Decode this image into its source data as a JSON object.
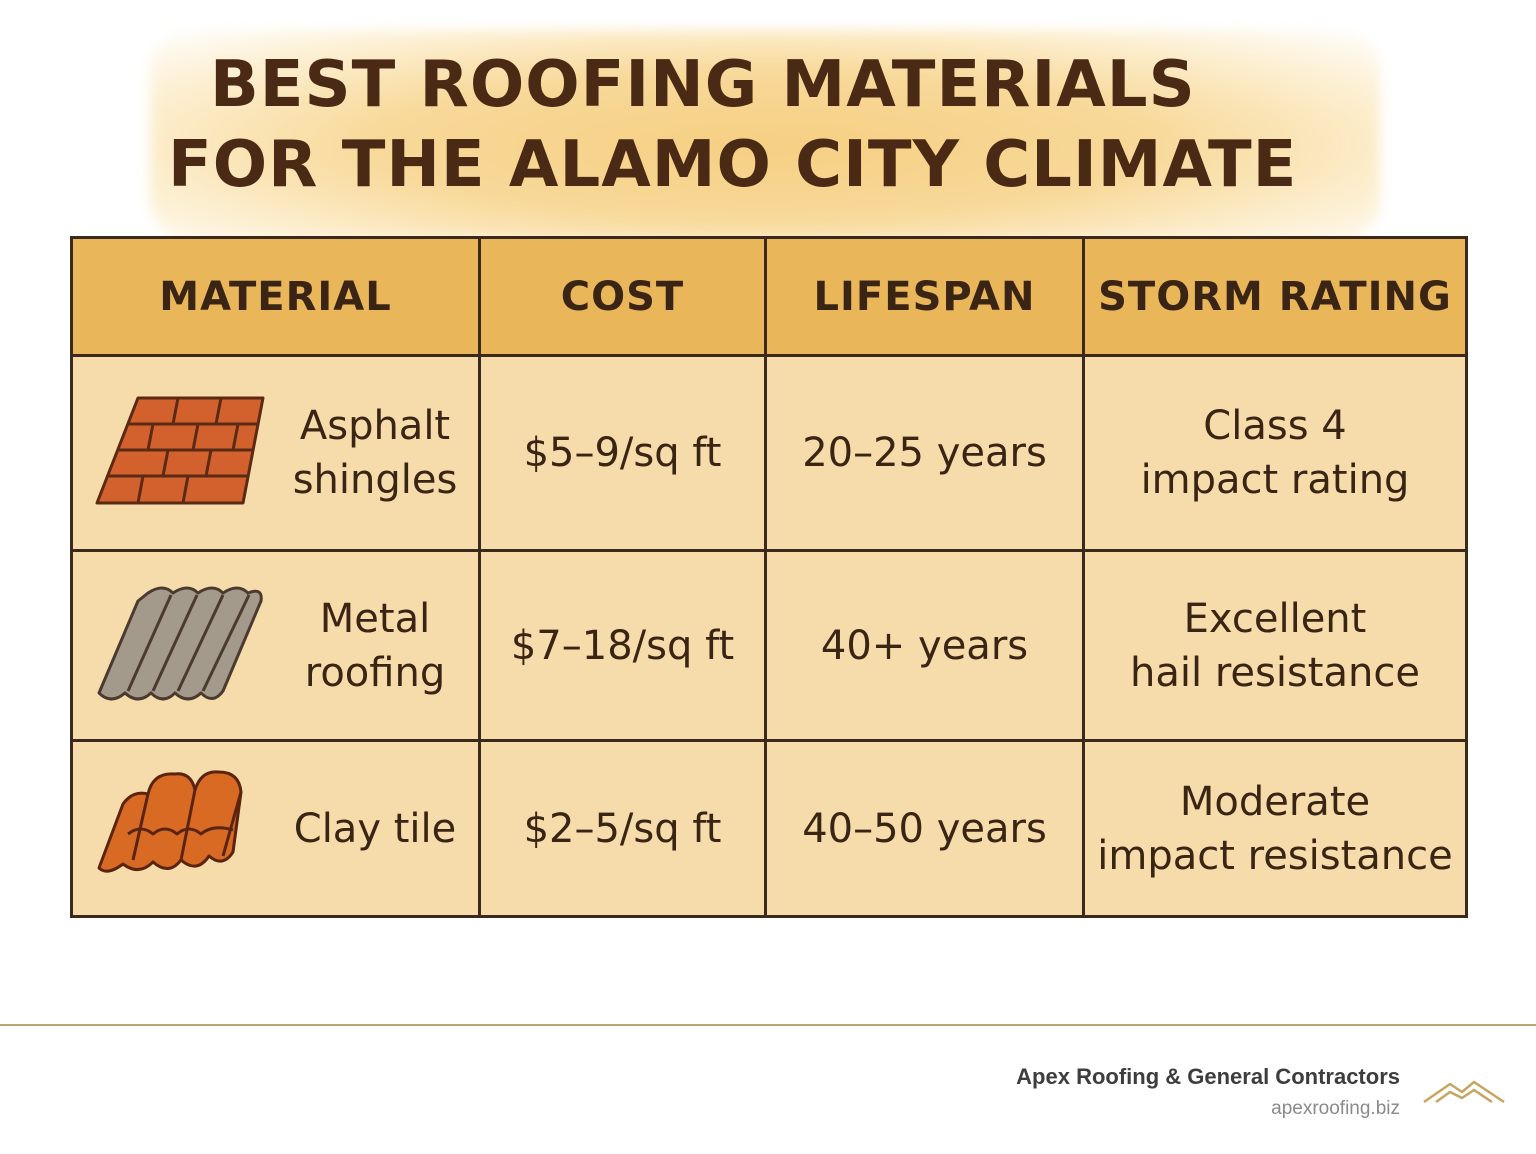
{
  "title": {
    "line1": "BEST ROOFING MATERIALS",
    "line2": "FOR THE ALAMO CITY CLIMATE"
  },
  "table": {
    "headers": [
      "MATERIAL",
      "COST",
      "LIFESPAN",
      "STORM RATING"
    ],
    "rows": [
      {
        "material": [
          "Asphalt",
          "shingles"
        ],
        "icon": "asphalt-shingles-icon",
        "cost": "$5–9/sq ft",
        "lifespan": "20–25 years",
        "storm": [
          "Class 4",
          "impact rating"
        ]
      },
      {
        "material": [
          "Metal",
          "roofing"
        ],
        "icon": "metal-roofing-icon",
        "cost": "$7–18/sq ft",
        "lifespan": "40+ years",
        "storm": [
          "Excellent",
          "hail resistance"
        ]
      },
      {
        "material": [
          "Clay tile"
        ],
        "icon": "clay-tile-icon",
        "cost": "$2–5/sq ft",
        "lifespan": "40–50 years",
        "storm": [
          "Moderate",
          "impact resistance"
        ]
      }
    ]
  },
  "footer": {
    "company": "Apex Roofing & General Contractors",
    "website": "apexroofing.biz"
  },
  "colors": {
    "header_bg": "#e9b65a",
    "cell_bg": "#f6dcaa",
    "text": "#3a2414",
    "border": "#3b2a1c",
    "footer_line": "#bfa57a",
    "logo": "#c6a55e"
  }
}
